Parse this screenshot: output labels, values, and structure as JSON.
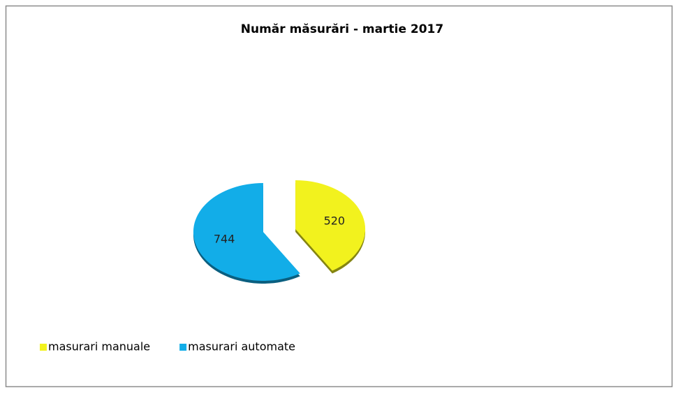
{
  "chart_data": {
    "type": "pie",
    "title": "Număr măsurări - martie 2017",
    "categories": [
      "masurari manuale",
      "masurari automate"
    ],
    "values": [
      520,
      744
    ],
    "colors": [
      "#f2f21e",
      "#12ade8"
    ],
    "legend": "bottom-left",
    "exploded": true
  }
}
